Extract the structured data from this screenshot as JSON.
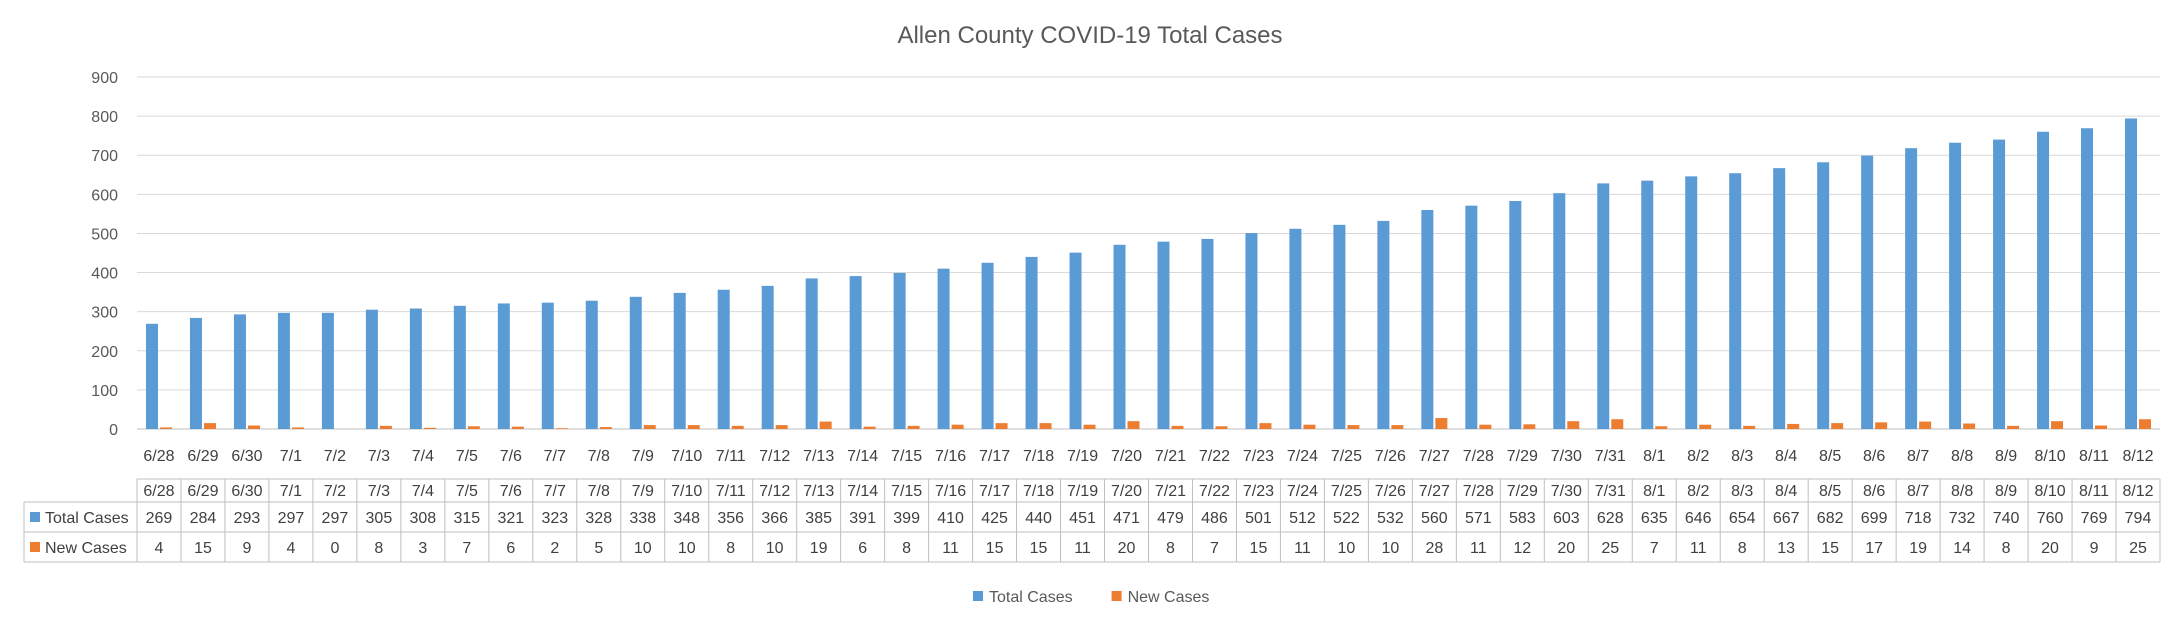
{
  "chart_data": {
    "type": "bar",
    "title": "Allen County COVID-19 Total Cases",
    "xlabel": "",
    "ylabel": "",
    "ylim": [
      0,
      900
    ],
    "yticks": [
      0,
      100,
      200,
      300,
      400,
      500,
      600,
      700,
      800,
      900
    ],
    "grid": true,
    "legend_position": "bottom",
    "data_table": true,
    "categories": [
      "6/28",
      "6/29",
      "6/30",
      "7/1",
      "7/2",
      "7/3",
      "7/4",
      "7/5",
      "7/6",
      "7/7",
      "7/8",
      "7/9",
      "7/10",
      "7/11",
      "7/12",
      "7/13",
      "7/14",
      "7/15",
      "7/16",
      "7/17",
      "7/18",
      "7/19",
      "7/20",
      "7/21",
      "7/22",
      "7/23",
      "7/24",
      "7/25",
      "7/26",
      "7/27",
      "7/28",
      "7/29",
      "7/30",
      "7/31",
      "8/1",
      "8/2",
      "8/3",
      "8/4",
      "8/5",
      "8/6",
      "8/7",
      "8/8",
      "8/9",
      "8/10",
      "8/11",
      "8/12"
    ],
    "series": [
      {
        "name": "Total Cases",
        "color": "#5B9BD5",
        "values": [
          269,
          284,
          293,
          297,
          297,
          305,
          308,
          315,
          321,
          323,
          328,
          338,
          348,
          356,
          366,
          385,
          391,
          399,
          410,
          425,
          440,
          451,
          471,
          479,
          486,
          501,
          512,
          522,
          532,
          560,
          571,
          583,
          603,
          628,
          635,
          646,
          654,
          667,
          682,
          699,
          718,
          732,
          740,
          760,
          769,
          794
        ]
      },
      {
        "name": "New Cases",
        "color": "#ED7D31",
        "values": [
          4,
          15,
          9,
          4,
          0,
          8,
          3,
          7,
          6,
          2,
          5,
          10,
          10,
          8,
          10,
          19,
          6,
          8,
          11,
          15,
          15,
          11,
          20,
          8,
          7,
          15,
          11,
          10,
          10,
          28,
          11,
          12,
          20,
          25,
          7,
          11,
          8,
          13,
          15,
          17,
          19,
          14,
          8,
          20,
          9,
          25
        ]
      }
    ]
  }
}
